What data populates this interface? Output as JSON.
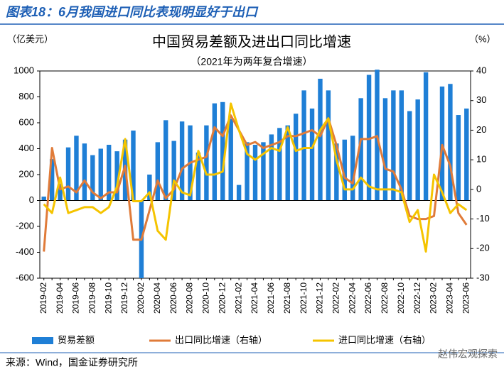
{
  "header": "图表18：6月我国进口同比表现明显好于出口",
  "source": "来源：Wind，国金证券研究所",
  "watermark": "赵伟宏观探索",
  "chart_data": {
    "type": "bar-line",
    "title": "中国贸易差额及进出口同比增速",
    "subtitle": "（2021年为两年复合增速）",
    "y_label": "（亿美元）",
    "y2_label": "（%）",
    "categories": [
      "2019-02",
      null,
      "2019-04",
      null,
      "2019-06",
      null,
      "2019-08",
      null,
      "2019-10",
      null,
      "2019-12",
      null,
      "2020-02",
      null,
      "2020-04",
      null,
      "2020-06",
      null,
      "2020-08",
      null,
      "2020-10",
      null,
      "2020-12",
      null,
      "2021-02",
      null,
      "2021-04",
      null,
      "2021-06",
      null,
      "2021-08",
      null,
      "2021-10",
      null,
      "2021-12",
      null,
      "2022-02",
      null,
      "2022-04",
      null,
      "2022-06",
      null,
      "2022-08",
      null,
      "2022-10",
      null,
      "2022-12",
      null,
      "2023-02",
      null,
      "2023-04",
      null,
      "2023-06"
    ],
    "series": [
      {
        "name": "贸易差额",
        "kind": "bar",
        "axis": "y",
        "color": "#1f7fd6",
        "values": [
          30,
          320,
          130,
          410,
          500,
          440,
          350,
          400,
          430,
          380,
          470,
          540,
          -600,
          200,
          450,
          620,
          460,
          610,
          580,
          370,
          580,
          750,
          760,
          630,
          120,
          450,
          430,
          450,
          510,
          560,
          580,
          670,
          850,
          710,
          940,
          850,
          440,
          470,
          500,
          790,
          970,
          1010,
          790,
          850,
          850,
          690,
          780,
          990,
          0,
          880,
          900,
          660,
          710
        ]
      },
      {
        "name": "出口同比增速（右轴）",
        "kind": "line",
        "axis": "y2",
        "color": "#e07b39",
        "values": [
          -21,
          14,
          0,
          1,
          -1,
          3,
          -1,
          -3,
          -1,
          -1,
          8,
          -17,
          -17,
          -7,
          3,
          -3,
          0,
          7,
          9,
          10,
          11,
          21,
          18,
          25,
          20,
          15,
          16,
          14,
          15,
          16,
          18,
          18,
          19,
          20,
          18,
          24,
          15,
          4,
          2,
          17,
          17,
          18,
          7,
          6,
          0,
          -9,
          -10,
          -10,
          -9,
          15,
          8,
          -8,
          -12
        ]
      },
      {
        "name": "进口同比增速（右轴）",
        "kind": "line",
        "axis": "y2",
        "color": "#f5c400",
        "values": [
          -5,
          -8,
          4,
          -8,
          -7,
          -6,
          -6,
          -8,
          -6,
          1,
          17,
          -4,
          -4,
          -1,
          -14,
          -17,
          3,
          -1,
          -2,
          13,
          5,
          5,
          6,
          29,
          20,
          12,
          10,
          12,
          14,
          13,
          21,
          13,
          14,
          14,
          20,
          24,
          10,
          0,
          0,
          4,
          1,
          0,
          0,
          0,
          -1,
          -11,
          -7,
          -21,
          5,
          -1,
          -8,
          -5,
          -7
        ]
      }
    ],
    "ylim": [
      -600,
      1000
    ],
    "yticks": [
      -600,
      -400,
      -200,
      0,
      200,
      400,
      600,
      800,
      1000
    ],
    "y2lim": [
      -30,
      40
    ],
    "y2ticks": [
      -30,
      -20,
      -10,
      0,
      10,
      20,
      30,
      40
    ]
  }
}
